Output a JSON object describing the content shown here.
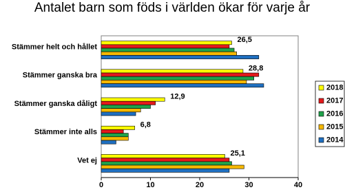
{
  "chart_data": {
    "type": "hbar",
    "title": "Antalet barn som föds i världen ökar för varje år",
    "categories": [
      "Stämmer helt och hållet",
      "Stämmer ganska bra",
      "Stämmer ganska dåligt",
      "Stämmer inte alls",
      "Vet ej"
    ],
    "series": [
      {
        "name": "2018",
        "color": "#ffff00",
        "values": [
          26.5,
          28.8,
          12.9,
          6.8,
          25.1
        ],
        "value_labels": [
          "26,5",
          "28,8",
          "12,9",
          "6,8",
          "25,1"
        ]
      },
      {
        "name": "2017",
        "color": "#e31a1c",
        "values": [
          26,
          32,
          11,
          4.5,
          26
        ]
      },
      {
        "name": "2016",
        "color": "#1fa34a",
        "values": [
          27,
          31,
          10,
          5.5,
          26.5
        ]
      },
      {
        "name": "2015",
        "color": "#f5b800",
        "values": [
          27.5,
          29.5,
          8,
          5.5,
          29
        ]
      },
      {
        "name": "2014",
        "color": "#1f6fc0",
        "values": [
          32,
          33,
          7,
          3,
          26
        ]
      }
    ],
    "xlim": [
      0,
      40
    ],
    "xticks": [
      0,
      10,
      20,
      30,
      40
    ],
    "grid": false,
    "legend": "right"
  }
}
